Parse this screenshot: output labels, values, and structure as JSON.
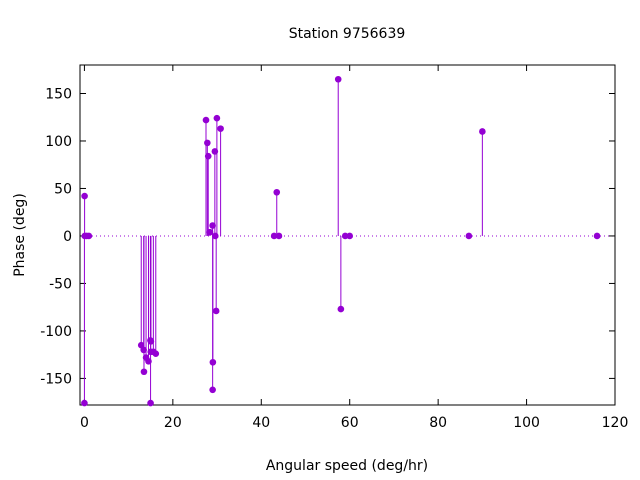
{
  "chart_data": {
    "type": "scatter",
    "style": "impulses-with-points",
    "title": "Station 9756639",
    "xlabel": "Angular speed (deg/hr)",
    "ylabel": "Phase (deg)",
    "xlim": [
      -1,
      120
    ],
    "ylim": [
      -178,
      180
    ],
    "xticks": [
      0,
      20,
      40,
      60,
      80,
      100,
      120
    ],
    "yticks": [
      -150,
      -100,
      -50,
      0,
      50,
      100,
      150
    ],
    "baseline": 0,
    "baseline_style": "dotted",
    "grid": false,
    "legend": "none",
    "color": "#9400d3",
    "series": [
      {
        "points": [
          {
            "x": 0.0,
            "y": -176
          },
          {
            "x": 0.04,
            "y": 42
          },
          {
            "x": 0.08,
            "y": 0
          },
          {
            "x": 0.5,
            "y": 0
          },
          {
            "x": 1.0,
            "y": 0
          },
          {
            "x": 12.85,
            "y": -115
          },
          {
            "x": 13.4,
            "y": -120
          },
          {
            "x": 13.47,
            "y": -143
          },
          {
            "x": 13.94,
            "y": -128
          },
          {
            "x": 14.49,
            "y": -132
          },
          {
            "x": 14.92,
            "y": -110
          },
          {
            "x": 14.96,
            "y": -176
          },
          {
            "x": 15.0,
            "y": -122
          },
          {
            "x": 15.04,
            "y": -111
          },
          {
            "x": 15.59,
            "y": -122
          },
          {
            "x": 16.14,
            "y": -124
          },
          {
            "x": 27.5,
            "y": 122
          },
          {
            "x": 27.8,
            "y": 98
          },
          {
            "x": 28.0,
            "y": 84
          },
          {
            "x": 28.4,
            "y": 4
          },
          {
            "x": 28.99,
            "y": 11
          },
          {
            "x": 29.0,
            "y": -162
          },
          {
            "x": 29.05,
            "y": -133
          },
          {
            "x": 29.5,
            "y": 89
          },
          {
            "x": 29.6,
            "y": 0
          },
          {
            "x": 29.8,
            "y": -79
          },
          {
            "x": 29.96,
            "y": 124
          },
          {
            "x": 30.8,
            "y": 113
          },
          {
            "x": 42.9,
            "y": 0
          },
          {
            "x": 43.5,
            "y": 46
          },
          {
            "x": 44.0,
            "y": 0
          },
          {
            "x": 57.4,
            "y": 165
          },
          {
            "x": 58.0,
            "y": -77
          },
          {
            "x": 58.98,
            "y": 0
          },
          {
            "x": 60.0,
            "y": 0
          },
          {
            "x": 86.95,
            "y": 0
          },
          {
            "x": 90.0,
            "y": 110
          },
          {
            "x": 115.94,
            "y": 0
          }
        ]
      }
    ]
  }
}
